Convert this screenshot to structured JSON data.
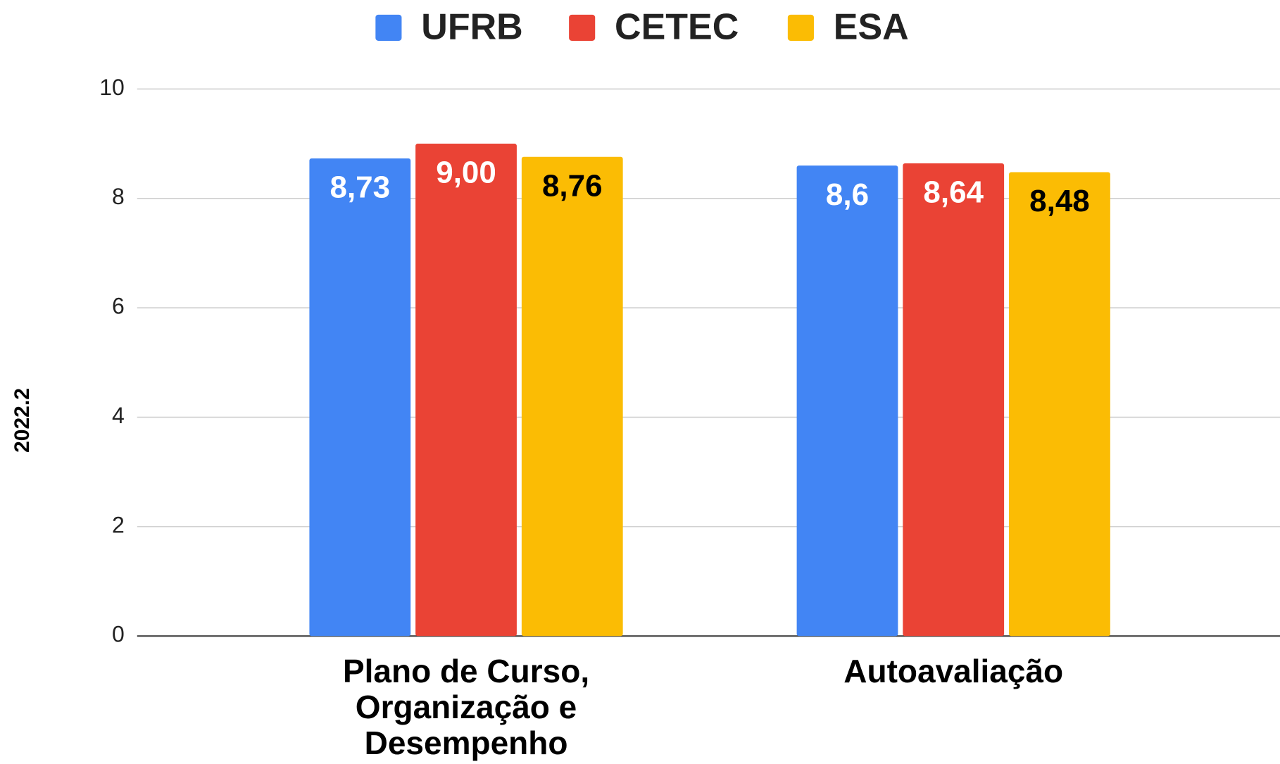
{
  "chart_data": {
    "type": "bar",
    "categories": [
      "Plano de Curso, Organização e Desempenho",
      "Autoavaliação"
    ],
    "y_label": "2022.2",
    "series": [
      {
        "name": "UFRB",
        "color": "#4285f4",
        "label_color": "#ffffff",
        "values": [
          8.73,
          8.6
        ],
        "value_labels": [
          "8,73",
          "8,6"
        ]
      },
      {
        "name": "CETEC",
        "color": "#ea4335",
        "label_color": "#ffffff",
        "values": [
          9.0,
          8.64
        ],
        "value_labels": [
          "9,00",
          "8,64"
        ]
      },
      {
        "name": "ESA",
        "color": "#fbbc04",
        "label_color": "#000000",
        "values": [
          8.76,
          8.48
        ],
        "value_labels": [
          "8,76",
          "8,48"
        ]
      }
    ],
    "ylim": [
      0,
      10
    ],
    "yticks": [
      0,
      2,
      4,
      6,
      8,
      10
    ],
    "grid": true,
    "legend": "top"
  }
}
